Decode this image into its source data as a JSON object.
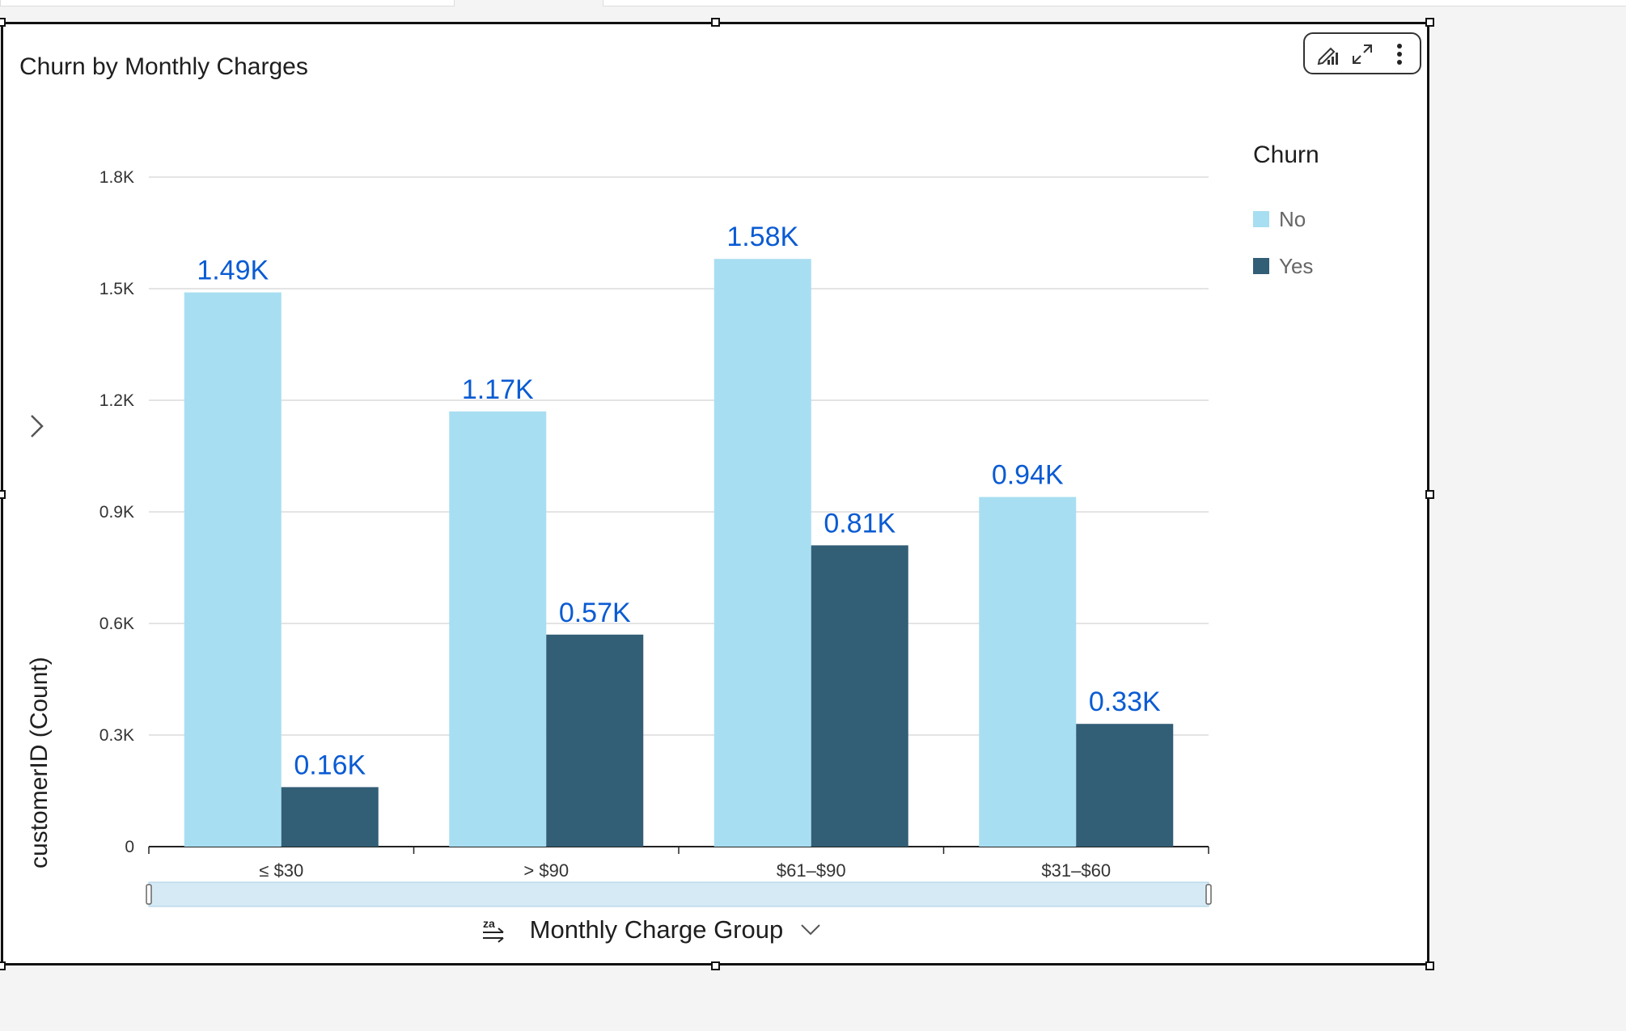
{
  "visual": {
    "title": "Churn by Monthly Charges",
    "toolbar": {
      "format_icon": "format-visual-icon",
      "expand_icon": "expand-icon",
      "menu_icon": "more-vertical-icon"
    }
  },
  "legend": {
    "title": "Churn",
    "items": [
      {
        "label": "No",
        "color": "#a8def1"
      },
      {
        "label": "Yes",
        "color": "#325e76"
      }
    ]
  },
  "axis": {
    "x_field": "Monthly Charge Group",
    "y_field": "customerID (Count)",
    "sort_icon": "sort-descending-icon",
    "x_dropdown_icon": "chevron-down-icon",
    "y_expand_icon": "chevron-right-icon"
  },
  "chart_data": {
    "type": "bar",
    "title": "Churn by Monthly Charges",
    "xlabel": "Monthly Charge Group",
    "ylabel": "customerID (Count)",
    "categories": [
      "≤ $30",
      "> $90",
      "$61–$90",
      "$31–$60"
    ],
    "series": [
      {
        "name": "No",
        "values": [
          1490,
          1170,
          1580,
          940
        ],
        "labels": [
          "1.49K",
          "1.17K",
          "1.58K",
          "0.94K"
        ],
        "color": "#a8def1"
      },
      {
        "name": "Yes",
        "values": [
          160,
          570,
          810,
          330
        ],
        "labels": [
          "0.16K",
          "0.57K",
          "0.81K",
          "0.33K"
        ],
        "color": "#325e76"
      }
    ],
    "ylim": [
      0,
      1800
    ],
    "yticks": [
      0,
      300,
      600,
      900,
      1200,
      1500,
      1800
    ],
    "ytick_labels": [
      "0",
      "0.3K",
      "0.6K",
      "0.9K",
      "1.2K",
      "1.5K",
      "1.8K"
    ],
    "grid": true,
    "legend_position": "right",
    "data_label_color": "#0a5bd3"
  }
}
